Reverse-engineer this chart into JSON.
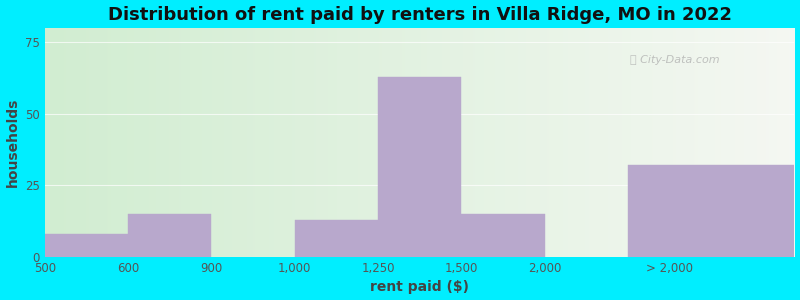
{
  "title": "Distribution of rent paid by renters in Villa Ridge, MO in 2022",
  "xlabel": "rent paid ($)",
  "ylabel": "households",
  "bar_lefts": [
    0,
    1,
    3,
    4,
    5,
    7
  ],
  "bar_rights": [
    1,
    2,
    4,
    5,
    6,
    9
  ],
  "bar_heights": [
    8,
    15,
    13,
    63,
    15,
    32
  ],
  "bar_color": "#b8a8cc",
  "xtick_positions": [
    0,
    1,
    2,
    3,
    4,
    5,
    6,
    7.5
  ],
  "xtick_labels": [
    "500",
    "600",
    "900",
    "1,000",
    "1,250",
    "1,500",
    "2,000",
    "> 2,000"
  ],
  "ytick_positions": [
    0,
    25,
    50,
    75
  ],
  "ytick_labels": [
    "0",
    "25",
    "50",
    "75"
  ],
  "ylim": [
    0,
    80
  ],
  "xlim": [
    0,
    9
  ],
  "bg_outer": "#00eeff",
  "title_fontsize": 13,
  "axis_label_fontsize": 10,
  "tick_fontsize": 8.5
}
